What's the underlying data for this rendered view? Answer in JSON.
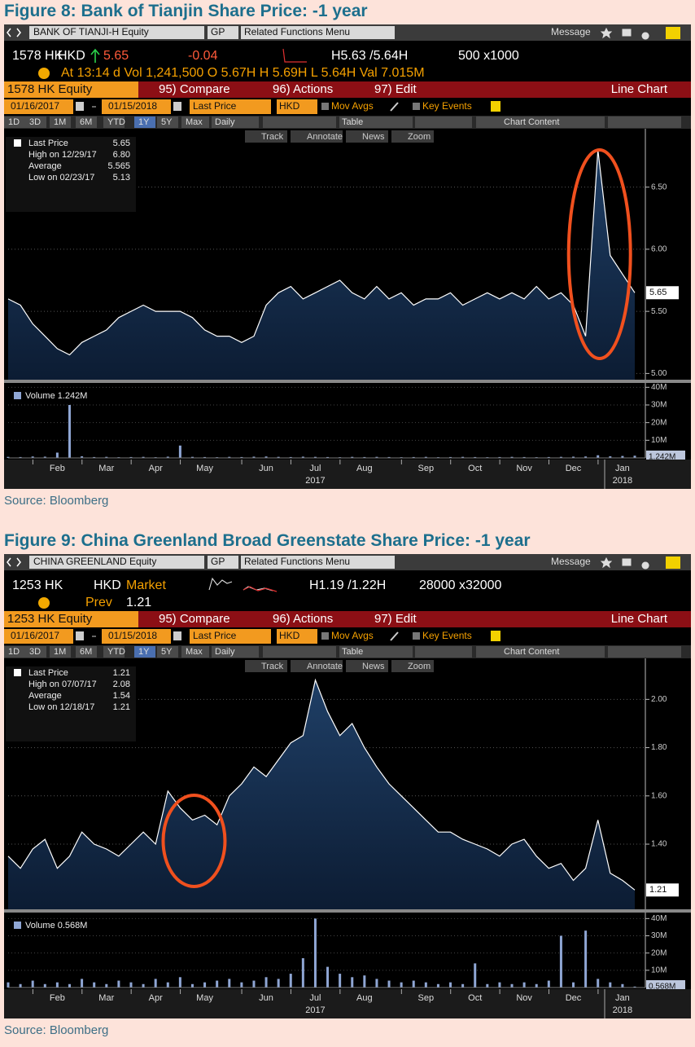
{
  "figures": [
    {
      "title": "Figure 8: Bank of Tianjin Share Price: -1 year",
      "source": "Source: Bloomberg",
      "security": "BANK OF TIANJI-H Equity",
      "gp": "GP",
      "related": "Related Functions  Menu",
      "message": "Message",
      "quote": [
        "1578 HK",
        "HKD",
        "5.65",
        "-0.04",
        "H5.63 /5.64H",
        "500 x1000"
      ],
      "quote2": [
        "At 13:14 d Vol 1,241,500  O 5.67H  H 5.69H  L 5.64H  Val 7.015M"
      ],
      "ticker": "1578 HK Equity",
      "menu": [
        "95) Compare",
        "96) Actions",
        "97) Edit"
      ],
      "chart_kind": "Line Chart",
      "start": "01/16/2017",
      "end": "01/15/2018",
      "field": "Last Price",
      "currency": "HKD",
      "mov_avgs": "Mov Avgs",
      "key_events": "Key Events",
      "periods": [
        "1D",
        "3D",
        "1M",
        "6M",
        "YTD",
        "1Y",
        "5Y",
        "Max"
      ],
      "frequency": "Daily",
      "table": "Table",
      "chart_content": "Chart Content",
      "tools": [
        "Track",
        "Annotate",
        "News",
        "Zoom"
      ],
      "legend": [
        [
          "Last Price",
          "5.65"
        ],
        [
          "High on 12/29/17",
          "6.80"
        ],
        [
          "Average",
          "5.565"
        ],
        [
          "Low on 02/23/17",
          "5.13"
        ]
      ],
      "last_badge": "5.65",
      "volume_legend": "Volume 1.242M",
      "volume_badge": "1.242M",
      "years": [
        "2017",
        "2018"
      ]
    },
    {
      "title": "Figure 9: China Greenland Broad Greenstate Share Price: -1 year",
      "source": "Source: Bloomberg",
      "security": "CHINA GREENLAND Equity",
      "gp": "GP",
      "related": "Related Functions  Menu",
      "message": "Message",
      "quote": [
        "1253 HK",
        "HKD",
        "Market",
        "H1.19 /1.22H",
        "28000 x32000"
      ],
      "quote2": [
        "Prev",
        "1.21"
      ],
      "ticker": "1253 HK Equity",
      "menu": [
        "95) Compare",
        "96) Actions",
        "97) Edit"
      ],
      "chart_kind": "Line Chart",
      "start": "01/16/2017",
      "end": "01/15/2018",
      "field": "Last Price",
      "currency": "HKD",
      "mov_avgs": "Mov Avgs",
      "key_events": "Key Events",
      "periods": [
        "1D",
        "3D",
        "1M",
        "6M",
        "YTD",
        "1Y",
        "5Y",
        "Max"
      ],
      "frequency": "Daily",
      "table": "Table",
      "chart_content": "Chart Content",
      "tools": [
        "Track",
        "Annotate",
        "News",
        "Zoom"
      ],
      "legend": [
        [
          "Last Price",
          "1.21"
        ],
        [
          "High on 07/07/17",
          "2.08"
        ],
        [
          "Average",
          "1.54"
        ],
        [
          "Low on 12/18/17",
          "1.21"
        ]
      ],
      "last_badge": "1.21",
      "volume_legend": "Volume 0.568M",
      "volume_badge": "0.568M",
      "years": [
        "2017",
        "2018"
      ]
    }
  ],
  "chart_data": [
    {
      "type": "area",
      "categories": [
        null,
        null,
        null,
        null,
        "Feb",
        null,
        null,
        null,
        "Mar",
        null,
        null,
        null,
        "Apr",
        null,
        null,
        null,
        "May",
        null,
        null,
        null,
        null,
        "Jun",
        null,
        null,
        null,
        "Jul",
        null,
        null,
        null,
        "Aug",
        null,
        null,
        null,
        null,
        "Sep",
        null,
        null,
        null,
        "Oct",
        null,
        null,
        null,
        "Nov",
        null,
        null,
        null,
        "Dec",
        null,
        null,
        null,
        "Jan",
        null
      ],
      "values": [
        5.6,
        5.55,
        5.4,
        5.3,
        5.2,
        5.15,
        5.25,
        5.3,
        5.35,
        5.45,
        5.5,
        5.55,
        5.5,
        5.5,
        5.5,
        5.45,
        5.35,
        5.3,
        5.3,
        5.25,
        5.3,
        5.55,
        5.65,
        5.7,
        5.6,
        5.65,
        5.7,
        5.75,
        5.65,
        5.6,
        5.7,
        5.6,
        5.65,
        5.55,
        5.6,
        5.6,
        5.65,
        5.55,
        5.6,
        5.65,
        5.6,
        5.65,
        5.6,
        5.7,
        5.6,
        5.65,
        5.55,
        5.3,
        6.8,
        5.95,
        5.8,
        5.65
      ],
      "color": "#ffffff",
      "ylim": [
        4.95,
        6.97
      ],
      "yticks": [
        {
          "value": 5,
          "label": "5.00"
        },
        {
          "value": 5.5,
          "label": "5.50"
        },
        {
          "value": 6,
          "label": "6.00"
        },
        {
          "value": 6.5,
          "label": "6.50"
        }
      ],
      "grid": true
    },
    {
      "type": "bar",
      "values": [
        0.6,
        0.5,
        0.8,
        0.7,
        3,
        30,
        0.9,
        0.5,
        0.6,
        0.4,
        0.5,
        0.6,
        0.4,
        0.7,
        7,
        0.6,
        0.5,
        0.4,
        0.6,
        0.5,
        0.7,
        0.8,
        0.6,
        0.5,
        0.7,
        0.6,
        0.5,
        0.4,
        0.6,
        0.5,
        0.6,
        0.5,
        0.4,
        0.5,
        0.6,
        0.4,
        0.5,
        0.6,
        0.5,
        0.4,
        0.5,
        0.6,
        0.5,
        0.4,
        0.5,
        0.6,
        0.7,
        0.8,
        1.5,
        0.9,
        1.1,
        1.242
      ],
      "color": "#8fa6d4",
      "ylim": [
        0,
        42
      ],
      "yticks": [
        {
          "value": 10,
          "label": "10M"
        },
        {
          "value": 20,
          "label": "20M"
        },
        {
          "value": 30,
          "label": "30M"
        },
        {
          "value": 40,
          "label": "40M"
        }
      ],
      "grid": true
    },
    {
      "type": "area",
      "categories": [
        null,
        null,
        null,
        null,
        "Feb",
        null,
        null,
        null,
        "Mar",
        null,
        null,
        null,
        "Apr",
        null,
        null,
        null,
        "May",
        null,
        null,
        null,
        null,
        "Jun",
        null,
        null,
        null,
        "Jul",
        null,
        null,
        null,
        "Aug",
        null,
        null,
        null,
        null,
        "Sep",
        null,
        null,
        null,
        "Oct",
        null,
        null,
        null,
        "Nov",
        null,
        null,
        null,
        "Dec",
        null,
        null,
        null,
        "Jan",
        null
      ],
      "values": [
        1.35,
        1.3,
        1.38,
        1.42,
        1.3,
        1.35,
        1.45,
        1.4,
        1.38,
        1.35,
        1.4,
        1.45,
        1.4,
        1.62,
        1.55,
        1.5,
        1.52,
        1.48,
        1.6,
        1.65,
        1.72,
        1.68,
        1.75,
        1.82,
        1.85,
        2.08,
        1.95,
        1.85,
        1.9,
        1.8,
        1.72,
        1.65,
        1.6,
        1.55,
        1.5,
        1.45,
        1.45,
        1.42,
        1.4,
        1.38,
        1.35,
        1.4,
        1.42,
        1.35,
        1.3,
        1.32,
        1.25,
        1.3,
        1.5,
        1.28,
        1.25,
        1.21
      ],
      "color": "#ffffff",
      "ylim": [
        1.13,
        2.17
      ],
      "yticks": [
        {
          "value": 1.4,
          "label": "1.40"
        },
        {
          "value": 1.6,
          "label": "1.60"
        },
        {
          "value": 1.8,
          "label": "1.80"
        },
        {
          "value": 2,
          "label": "2.00"
        }
      ],
      "grid": true
    },
    {
      "type": "bar",
      "values": [
        3,
        2,
        4,
        2,
        3,
        2,
        5,
        3,
        2,
        4,
        3,
        2,
        5,
        3,
        6,
        2,
        3,
        4,
        5,
        3,
        4,
        6,
        5,
        8,
        17,
        40,
        12,
        8,
        6,
        7,
        5,
        4,
        3,
        4,
        3,
        2,
        3,
        2,
        14,
        2,
        3,
        2,
        3,
        2,
        4,
        30,
        3,
        33,
        5,
        3,
        2,
        0.568
      ],
      "color": "#8fa6d4",
      "ylim": [
        0,
        43
      ],
      "yticks": [
        {
          "value": 10,
          "label": "10M"
        },
        {
          "value": 20,
          "label": "20M"
        },
        {
          "value": 30,
          "label": "30M"
        },
        {
          "value": 40,
          "label": "40M"
        }
      ],
      "grid": true
    }
  ]
}
